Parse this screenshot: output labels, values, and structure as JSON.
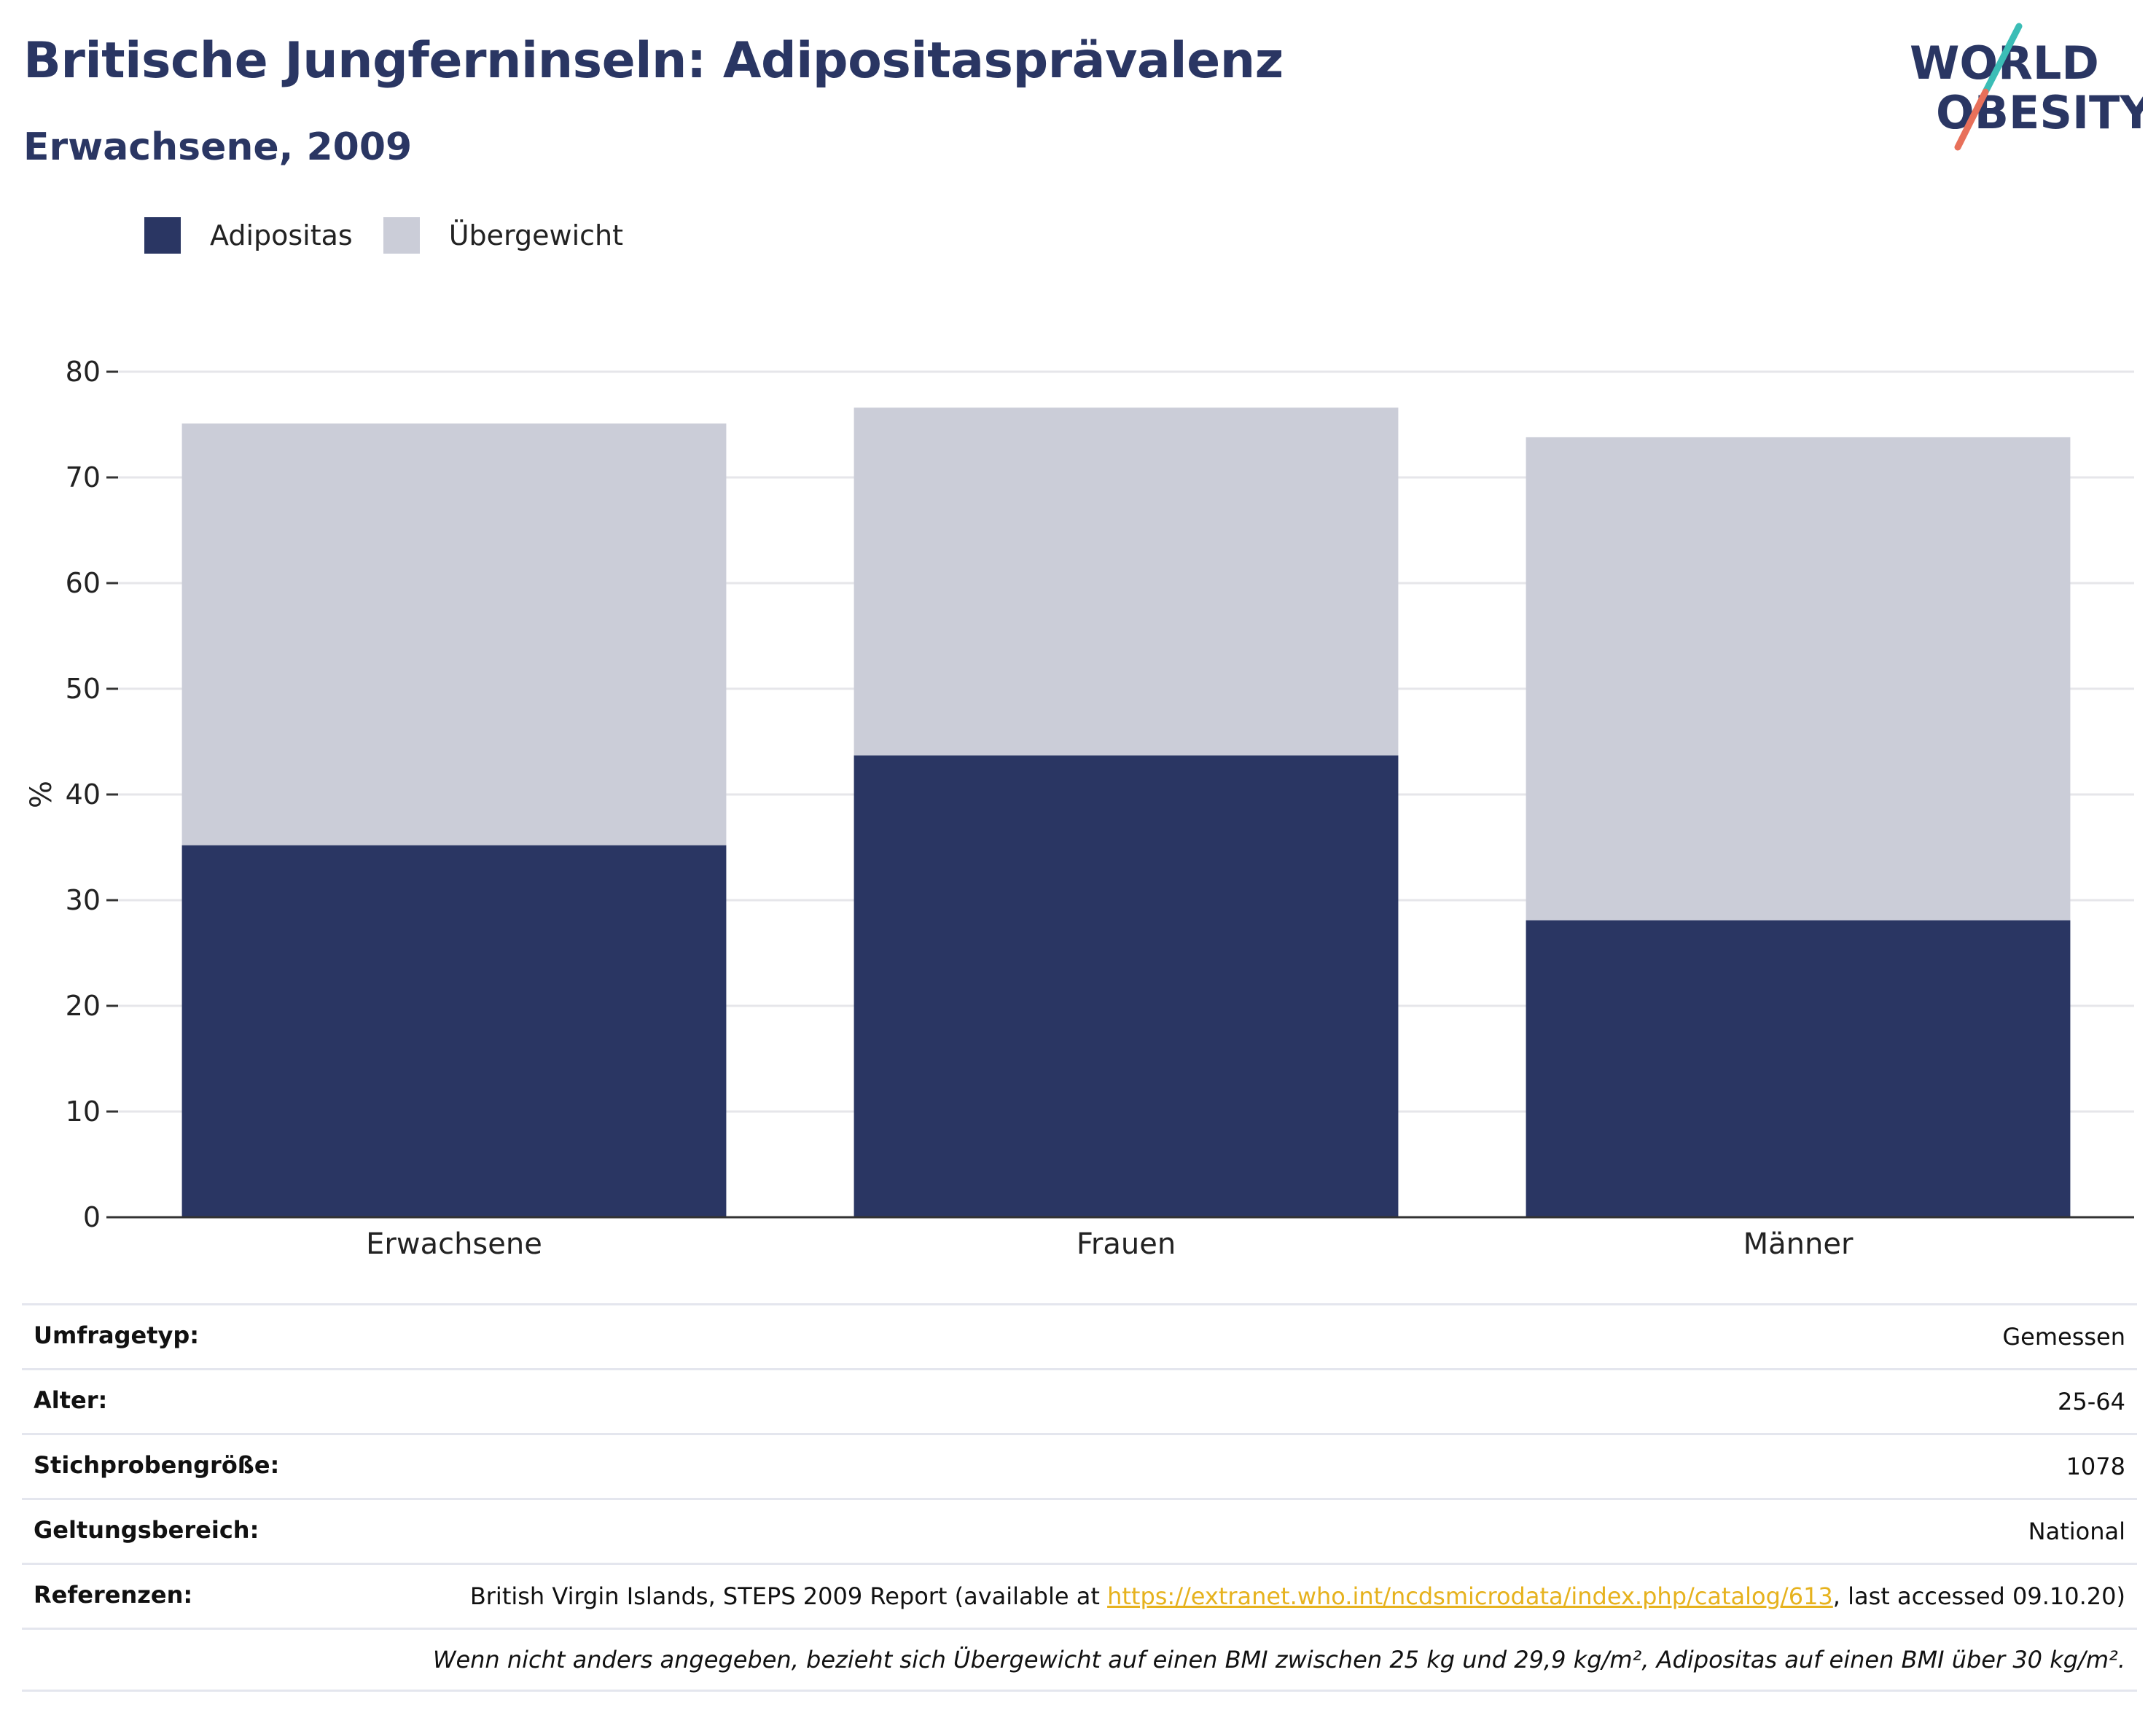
{
  "header": {
    "title": "Britische Jungferninseln: Adipositasprävalenz",
    "subtitle": "Erwachsene, 2009"
  },
  "logo": {
    "line1": "WORLD",
    "line2": "OBESITY",
    "colors": {
      "text": "#2a3663",
      "slash_top": "#3bbdb6",
      "slash_bottom": "#e8705a"
    }
  },
  "colors": {
    "obesity": "#2a3663",
    "overweight": "#cbcdd8",
    "grid": "#e6e6ea",
    "axis": "#333333"
  },
  "legend": [
    {
      "label": "Adipositas",
      "color": "#2a3663"
    },
    {
      "label": "Übergewicht",
      "color": "#cbcdd8"
    }
  ],
  "chart_data": {
    "type": "bar",
    "stacked": true,
    "categories": [
      "Erwachsene",
      "Frauen",
      "Männer"
    ],
    "series": [
      {
        "name": "Adipositas",
        "values": [
          35.2,
          43.7,
          28.1
        ]
      },
      {
        "name": "Übergewicht",
        "values": [
          39.9,
          32.9,
          45.7
        ]
      }
    ],
    "ylabel": "%",
    "ylim": [
      0,
      80
    ],
    "yticks": [
      0,
      10,
      20,
      30,
      40,
      50,
      60,
      70,
      80
    ],
    "grid": true,
    "legend_position": "top-left"
  },
  "meta": {
    "survey_type": {
      "key": "Umfragetyp:",
      "value": "Gemessen"
    },
    "age": {
      "key": "Alter:",
      "value": "25-64"
    },
    "sample_size": {
      "key": "Stichprobengröße:",
      "value": "1078"
    },
    "scope": {
      "key": "Geltungsbereich:",
      "value": "National"
    },
    "references": {
      "key": "Referenzen:",
      "prefix": "British Virgin Islands, STEPS 2009 Report (available at ",
      "link": "https://extranet.who.int/ncdsmicrodata/index.php/catalog/613",
      "suffix": ", last accessed 09.10.20)"
    },
    "note": "Wenn nicht anders angegeben, bezieht sich Übergewicht auf einen BMI zwischen 25 kg und 29,9 kg/m², Adipositas auf einen BMI über 30 kg/m²."
  }
}
